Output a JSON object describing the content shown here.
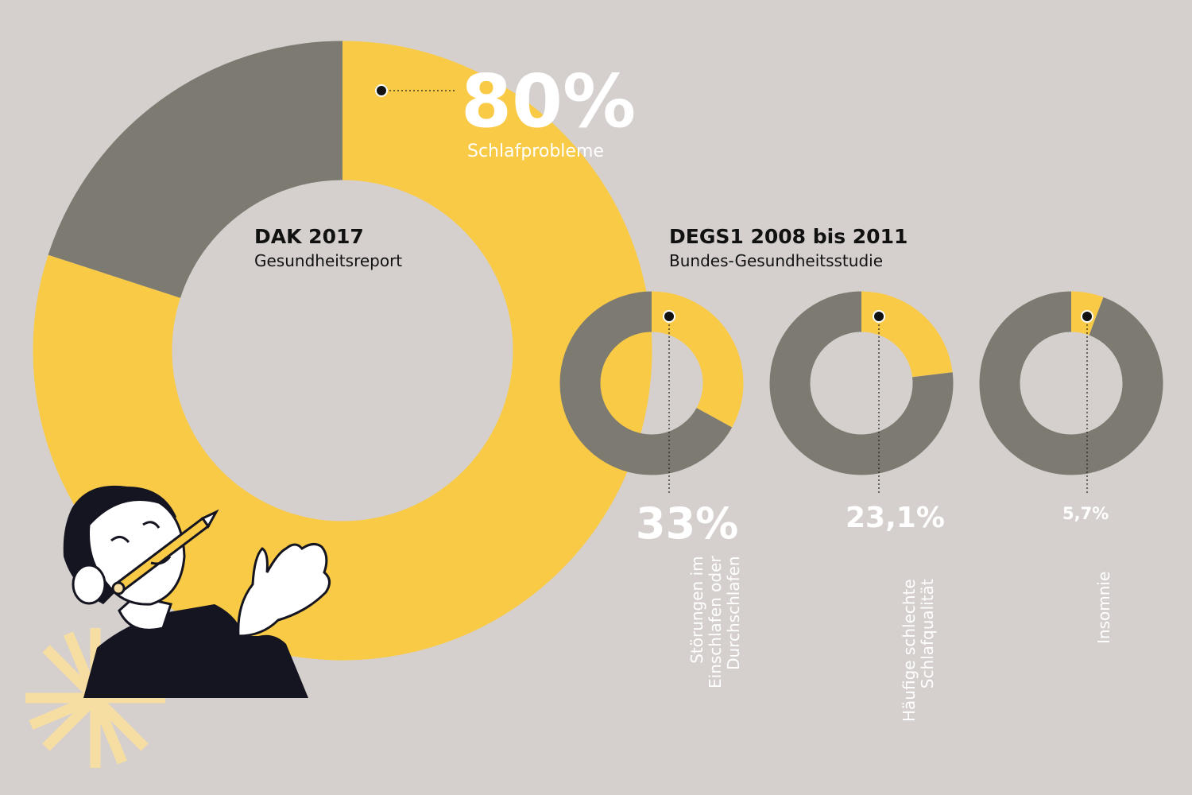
{
  "colors": {
    "background": "#d5d0cd",
    "accent": "#f9ca46",
    "neutral": "#7d7a72",
    "text_dark": "#111111",
    "text_light": "#ffffff"
  },
  "main": {
    "value": "80%",
    "label": "Schlafprobleme",
    "source_title": "DAK 2017",
    "source_subtitle": "Gesundheitsreport"
  },
  "study": {
    "title": "DEGS1 2008 bis 2011",
    "subtitle": "Bundes-Gesundheitsstudie"
  },
  "small": [
    {
      "value": "33%",
      "label_line1": "Störungen im",
      "label_line2": "Einschlafen oder",
      "label_line3": "Durchschlafen"
    },
    {
      "value": "23,1%",
      "label_line1": "Häufige schlechte",
      "label_line2": "Schlafqualität",
      "label_line3": ""
    },
    {
      "value": "5,7%",
      "label_line1": "Insomnie",
      "label_line2": "",
      "label_line3": ""
    }
  ],
  "chart_data": [
    {
      "type": "pie",
      "title": "DAK 2017",
      "subtitle": "Gesundheitsreport",
      "categories": [
        "Schlafprobleme",
        ""
      ],
      "values": [
        80,
        20
      ]
    },
    {
      "type": "pie",
      "title": "DEGS1 2008 bis 2011",
      "subtitle": "Bundes-Gesundheitsstudie",
      "categories": [
        "Störungen im Einschlafen oder Durchschlafen",
        ""
      ],
      "values": [
        33,
        67
      ]
    },
    {
      "type": "pie",
      "categories": [
        "Häufige schlechte Schlafqualität",
        ""
      ],
      "values": [
        23.1,
        76.9
      ]
    },
    {
      "type": "pie",
      "categories": [
        "Insomnie",
        ""
      ],
      "values": [
        5.7,
        94.3
      ]
    }
  ]
}
